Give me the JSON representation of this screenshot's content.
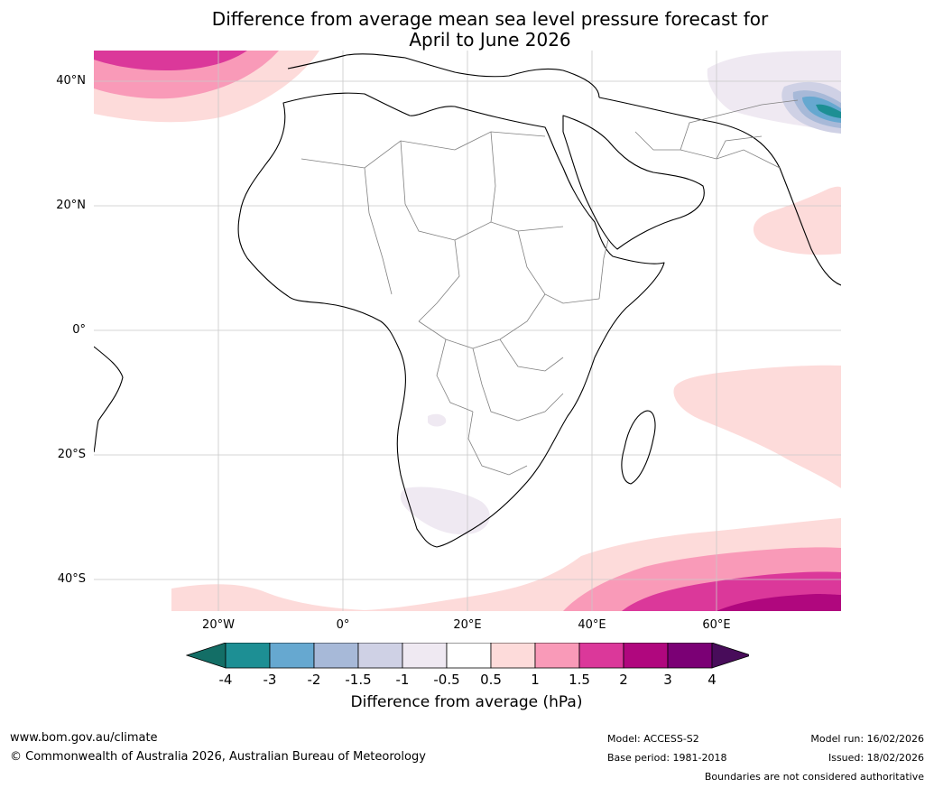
{
  "title_line1": "Difference from average mean sea level pressure forecast for",
  "title_line2": "April to June 2026",
  "map": {
    "lat_labels": [
      "40°N",
      "20°N",
      "0°",
      "20°S",
      "40°S"
    ],
    "lon_labels": [
      "20°W",
      "0°",
      "20°E",
      "40°E",
      "60°E"
    ],
    "extent": {
      "lon_min": -40,
      "lon_max": 80,
      "lat_min": -45,
      "lat_max": 45
    }
  },
  "colorbar": {
    "ticks": [
      "-4",
      "-3",
      "-2",
      "-1.5",
      "-1",
      "-0.5",
      "0.5",
      "1",
      "1.5",
      "2",
      "3",
      "4"
    ],
    "colors": [
      "#136e66",
      "#1d8f94",
      "#66a8d0",
      "#a7b9d8",
      "#cfd1e5",
      "#efe9f2",
      "#ffffff",
      "#fddbda",
      "#f99ab8",
      "#db389a",
      "#b0077e",
      "#7b0075",
      "#480c5a"
    ],
    "title": "Difference from average (hPa)"
  },
  "footer": {
    "url": "www.bom.gov.au/climate",
    "copyright": "© Commonwealth of Australia 2026, Australian Bureau of Meteorology",
    "model": "Model: ACCESS-S2",
    "base_period": "Base period: 1981-2018",
    "model_run": "Model run: 16/02/2026",
    "issued": "Issued: 18/02/2026",
    "boundaries": "Boundaries are not considered authoritative"
  }
}
